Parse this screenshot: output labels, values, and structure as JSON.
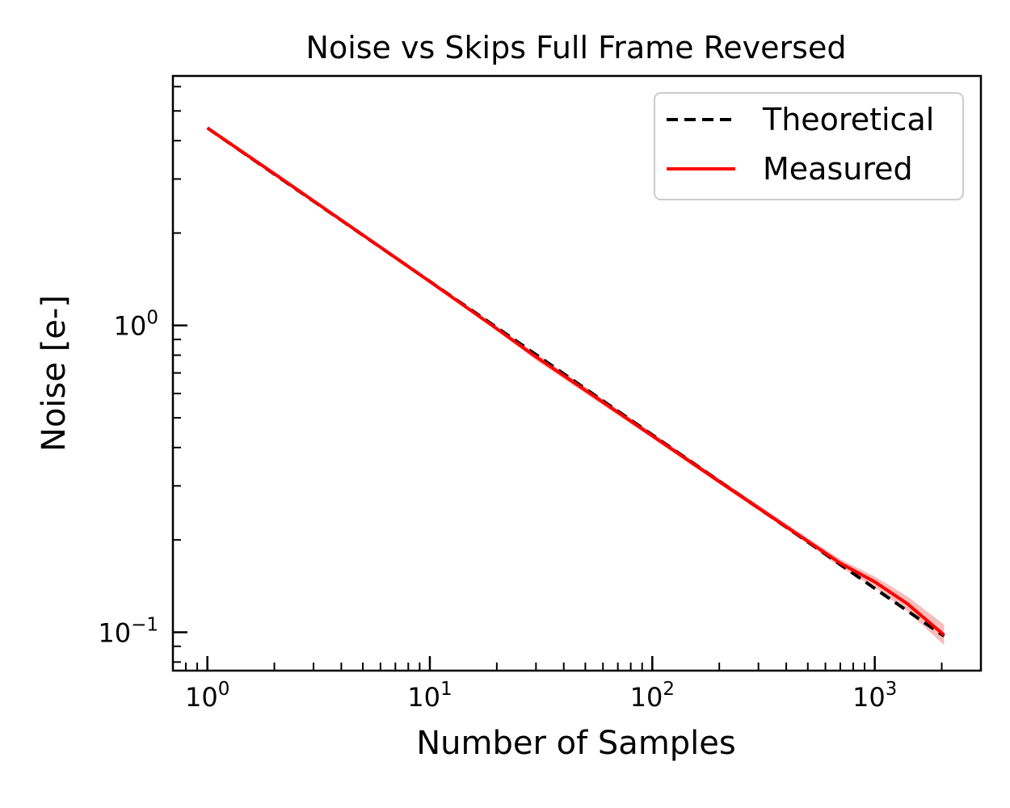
{
  "chart_data": {
    "type": "line",
    "title": "Noise vs Skips Full Frame Reversed",
    "xlabel": "Number of Samples",
    "ylabel": "Noise [e-]",
    "xscale": "log",
    "yscale": "log",
    "xlim": [
      0.7,
      3000
    ],
    "ylim": [
      0.075,
      6.5
    ],
    "grid": false,
    "legend_position": "top-right",
    "x_ticks": [
      {
        "base": "10",
        "exp": "0",
        "value": 1
      },
      {
        "base": "10",
        "exp": "1",
        "value": 10
      },
      {
        "base": "10",
        "exp": "2",
        "value": 100
      },
      {
        "base": "10",
        "exp": "3",
        "value": 1000
      }
    ],
    "y_ticks": [
      {
        "base": "10",
        "exp": "−1",
        "value": 0.1
      },
      {
        "base": "10",
        "exp": "0",
        "value": 1
      }
    ],
    "series": [
      {
        "name": "Theoretical",
        "style": "dashed",
        "color": "#000000",
        "x": [
          1,
          2,
          5,
          10,
          20,
          50,
          100,
          200,
          500,
          1000,
          2048
        ],
        "y": [
          4.4,
          3.11,
          1.968,
          1.391,
          0.984,
          0.622,
          0.44,
          0.311,
          0.197,
          0.139,
          0.0972
        ]
      },
      {
        "name": "Measured",
        "style": "solid",
        "color": "#ff0000",
        "band_color": "#f4a6a6",
        "x": [
          1,
          2,
          5,
          10,
          20,
          30,
          50,
          100,
          200,
          500,
          700,
          1000,
          1400,
          2048
        ],
        "y": [
          4.4,
          3.12,
          1.97,
          1.39,
          0.975,
          0.79,
          0.615,
          0.437,
          0.31,
          0.198,
          0.168,
          0.146,
          0.124,
          0.098
        ],
        "lower": [
          4.4,
          3.1,
          1.95,
          1.375,
          0.96,
          0.77,
          0.6,
          0.428,
          0.304,
          0.194,
          0.163,
          0.14,
          0.117,
          0.091
        ],
        "upper": [
          4.4,
          3.14,
          1.99,
          1.405,
          0.99,
          0.81,
          0.63,
          0.446,
          0.316,
          0.203,
          0.173,
          0.152,
          0.131,
          0.106
        ]
      }
    ]
  }
}
